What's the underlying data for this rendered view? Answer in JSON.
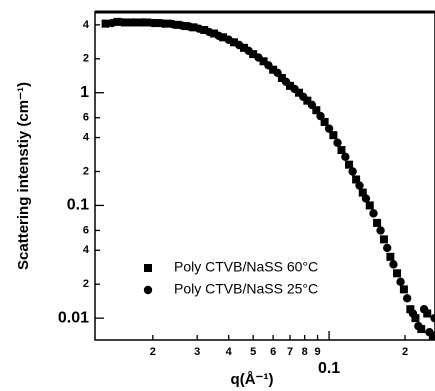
{
  "chart_data": {
    "type": "scatter",
    "log_x": true,
    "log_y": true,
    "x_label": "q(Å⁻¹)",
    "y_label": "Scattering intenstiy (cm⁻¹)",
    "xlim": [
      0.0118,
      0.263
    ],
    "ylim": [
      0.0064,
      5.2
    ],
    "xticks": [
      {
        "value": 0.02,
        "label": "2"
      },
      {
        "value": 0.03,
        "label": "3"
      },
      {
        "value": 0.04,
        "label": "4"
      },
      {
        "value": 0.05,
        "label": "5"
      },
      {
        "value": 0.06,
        "label": "6"
      },
      {
        "value": 0.07,
        "label": "7"
      },
      {
        "value": 0.08,
        "label": "8"
      },
      {
        "value": 0.09,
        "label": "9"
      },
      0.1,
      {
        "value": 0.2,
        "label": "2"
      }
    ],
    "yticks": [
      0.01,
      {
        "value": 0.02,
        "label": "2"
      },
      {
        "value": 0.04,
        "label": "4"
      },
      {
        "value": 0.06,
        "label": "6"
      },
      0.1,
      {
        "value": 0.2,
        "label": "2"
      },
      {
        "value": 0.4,
        "label": "4"
      },
      {
        "value": 0.6,
        "label": "6"
      },
      1,
      2,
      4
    ],
    "legend": "lower left",
    "series": [
      {
        "name": "Poly CTVB/NaSS 60°C",
        "marker": "square",
        "color": "#000000",
        "x": [
          0.013,
          0.0145,
          0.016,
          0.0175,
          0.019,
          0.021,
          0.023,
          0.025,
          0.027,
          0.029,
          0.032,
          0.035,
          0.038,
          0.042,
          0.046,
          0.05,
          0.055,
          0.06,
          0.065,
          0.07,
          0.076,
          0.082,
          0.089,
          0.096,
          0.104,
          0.112,
          0.12,
          0.128,
          0.136,
          0.145,
          0.155,
          0.165,
          0.175,
          0.186,
          0.198,
          0.21,
          0.22,
          0.232,
          0.245,
          0.258
        ],
        "values": [
          4.1,
          4.25,
          4.2,
          4.2,
          4.2,
          4.15,
          4.1,
          4.0,
          3.9,
          3.8,
          3.6,
          3.35,
          3.1,
          2.8,
          2.5,
          2.2,
          1.9,
          1.6,
          1.35,
          1.15,
          1.0,
          0.85,
          0.7,
          0.55,
          0.42,
          0.31,
          0.23,
          0.17,
          0.13,
          0.1,
          0.07,
          0.05,
          0.035,
          0.025,
          0.018,
          0.012,
          0.01,
          0.008,
          0.011,
          0.007
        ]
      },
      {
        "name": "Poly CTVB/NaSS 25°C",
        "marker": "circle",
        "color": "#000000",
        "x": [
          0.0138,
          0.0152,
          0.0168,
          0.0183,
          0.02,
          0.022,
          0.024,
          0.026,
          0.028,
          0.0305,
          0.0335,
          0.0365,
          0.04,
          0.044,
          0.048,
          0.0525,
          0.0575,
          0.0625,
          0.0675,
          0.073,
          0.079,
          0.0855,
          0.0925,
          0.1,
          0.108,
          0.116,
          0.124,
          0.132,
          0.14,
          0.15,
          0.16,
          0.17,
          0.18,
          0.192,
          0.204,
          0.215,
          0.226,
          0.238,
          0.25,
          0.262
        ],
        "values": [
          4.15,
          4.2,
          4.2,
          4.2,
          4.15,
          4.1,
          4.05,
          3.95,
          3.85,
          3.7,
          3.45,
          3.2,
          2.95,
          2.65,
          2.35,
          2.05,
          1.75,
          1.5,
          1.25,
          1.08,
          0.92,
          0.78,
          0.62,
          0.48,
          0.36,
          0.27,
          0.2,
          0.15,
          0.115,
          0.085,
          0.06,
          0.042,
          0.03,
          0.021,
          0.015,
          0.011,
          0.0085,
          0.012,
          0.0075,
          0.01
        ]
      }
    ]
  }
}
